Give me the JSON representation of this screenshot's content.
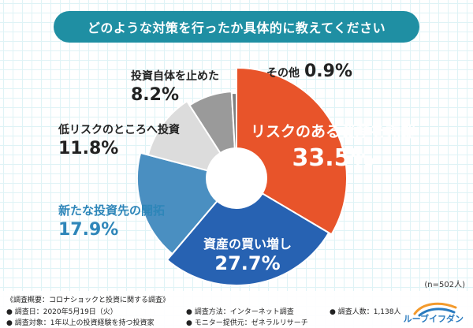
{
  "title": "どのような対策を行ったか具体的に教えてください",
  "chart_data": {
    "type": "pie",
    "title": "どのような対策を行ったか具体的に教えてください",
    "categories": [
      "リスクのある資産を売却",
      "資産の買い増し",
      "新たな投資先の開拓",
      "低リスクのところへ投資",
      "投資自体を止めた",
      "その他"
    ],
    "values": [
      33.5,
      27.7,
      17.9,
      11.8,
      8.2,
      0.9
    ],
    "value_labels": [
      "33.5%",
      "27.7%",
      "17.9%",
      "11.8%",
      "8.2%",
      "0.9%"
    ],
    "colors": [
      "#e8542a",
      "#2762b2",
      "#4a8fc1",
      "#dcdcdc",
      "#9a9a9a",
      "#808080"
    ],
    "style": "donut"
  },
  "sample_size": "(n=502人)",
  "footer": {
    "overview": "《調査概要：コロナショックと投資に関する調査》",
    "date": "● 調査日：2020年5月19日（火）",
    "target": "● 調査対象：1年以上の投資経験を持つ投資家",
    "method": "● 調査方法：インターネット調査",
    "provider": "● モニター提供元：ゼネラルリサーチ",
    "count": "● 調査人数：1,138人"
  },
  "logo_text": "ルーブイフダン"
}
